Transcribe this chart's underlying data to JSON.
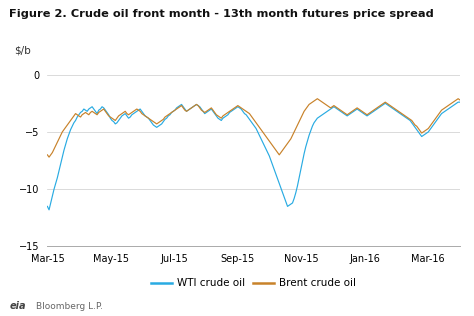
{
  "title": "Figure 2. Crude oil front month - 13th month futures price spread",
  "ylabel": "$/b",
  "ylim": [
    -15,
    1
  ],
  "yticks": [
    0,
    -5,
    -10,
    -15
  ],
  "xtick_labels": [
    "Mar-15",
    "May-15",
    "Jul-15",
    "Sep-15",
    "Nov-15",
    "Jan-16",
    "Mar-16"
  ],
  "wti_color": "#29abe2",
  "brent_color": "#c8822a",
  "background_color": "#ffffff",
  "legend_wti": "WTI crude oil",
  "legend_brent": "Brent crude oil",
  "wti_data": [
    -11.5,
    -11.8,
    -11.2,
    -10.6,
    -10.0,
    -9.5,
    -9.0,
    -8.4,
    -7.8,
    -7.2,
    -6.6,
    -6.1,
    -5.6,
    -5.2,
    -4.8,
    -4.5,
    -4.2,
    -4.0,
    -3.7,
    -3.5,
    -3.3,
    -3.2,
    -3.0,
    -3.1,
    -3.2,
    -3.0,
    -2.9,
    -2.8,
    -3.0,
    -3.2,
    -3.4,
    -3.1,
    -3.0,
    -2.8,
    -2.9,
    -3.1,
    -3.3,
    -3.5,
    -3.8,
    -4.0,
    -4.1,
    -4.3,
    -4.2,
    -4.0,
    -3.8,
    -3.6,
    -3.5,
    -3.4,
    -3.6,
    -3.8,
    -3.7,
    -3.5,
    -3.4,
    -3.3,
    -3.2,
    -3.1,
    -3.0,
    -3.2,
    -3.4,
    -3.6,
    -3.7,
    -3.8,
    -4.0,
    -4.2,
    -4.4,
    -4.5,
    -4.6,
    -4.5,
    -4.4,
    -4.3,
    -4.1,
    -3.9,
    -3.8,
    -3.6,
    -3.5,
    -3.3,
    -3.2,
    -3.1,
    -2.9,
    -2.8,
    -2.7,
    -2.6,
    -2.8,
    -3.0,
    -3.2,
    -3.1,
    -3.0,
    -2.9,
    -2.8,
    -2.7,
    -2.6,
    -2.7,
    -2.8,
    -3.0,
    -3.2,
    -3.4,
    -3.3,
    -3.2,
    -3.1,
    -3.0,
    -3.2,
    -3.4,
    -3.6,
    -3.8,
    -3.9,
    -4.0,
    -3.8,
    -3.7,
    -3.6,
    -3.5,
    -3.3,
    -3.2,
    -3.1,
    -3.0,
    -2.9,
    -2.8,
    -2.9,
    -3.0,
    -3.2,
    -3.4,
    -3.5,
    -3.7,
    -3.9,
    -4.1,
    -4.3,
    -4.5,
    -4.7,
    -5.0,
    -5.3,
    -5.6,
    -5.9,
    -6.2,
    -6.5,
    -6.8,
    -7.1,
    -7.5,
    -7.9,
    -8.3,
    -8.7,
    -9.1,
    -9.5,
    -9.9,
    -10.3,
    -10.7,
    -11.1,
    -11.5,
    -11.4,
    -11.3,
    -11.2,
    -10.8,
    -10.3,
    -9.7,
    -9.0,
    -8.3,
    -7.6,
    -6.9,
    -6.3,
    -5.8,
    -5.3,
    -4.9,
    -4.5,
    -4.2,
    -4.0,
    -3.8,
    -3.7,
    -3.6,
    -3.5,
    -3.4,
    -3.3,
    -3.2,
    -3.1,
    -3.0,
    -2.9,
    -2.8,
    -2.9,
    -3.0,
    -3.1,
    -3.2,
    -3.3,
    -3.4,
    -3.5,
    -3.6,
    -3.5,
    -3.4,
    -3.3,
    -3.2,
    -3.1,
    -3.0,
    -3.1,
    -3.2,
    -3.3,
    -3.4,
    -3.5,
    -3.6,
    -3.5,
    -3.4,
    -3.3,
    -3.2,
    -3.1,
    -3.0,
    -2.9,
    -2.8,
    -2.7,
    -2.6,
    -2.5,
    -2.6,
    -2.7,
    -2.8,
    -2.9,
    -3.0,
    -3.1,
    -3.2,
    -3.3,
    -3.4,
    -3.5,
    -3.6,
    -3.7,
    -3.8,
    -3.9,
    -4.0,
    -4.2,
    -4.4,
    -4.6,
    -4.8,
    -5.0,
    -5.2,
    -5.4,
    -5.3,
    -5.2,
    -5.1,
    -5.0,
    -4.8,
    -4.6,
    -4.4,
    -4.2,
    -4.0,
    -3.8,
    -3.6,
    -3.4,
    -3.3,
    -3.2,
    -3.1,
    -3.0,
    -2.9,
    -2.8,
    -2.7,
    -2.6,
    -2.5,
    -2.4,
    -2.4
  ],
  "brent_data": [
    -7.0,
    -7.2,
    -7.0,
    -6.8,
    -6.5,
    -6.2,
    -5.9,
    -5.6,
    -5.3,
    -5.0,
    -4.8,
    -4.6,
    -4.4,
    -4.2,
    -4.0,
    -3.8,
    -3.6,
    -3.4,
    -3.5,
    -3.6,
    -3.7,
    -3.5,
    -3.4,
    -3.3,
    -3.4,
    -3.5,
    -3.3,
    -3.2,
    -3.3,
    -3.4,
    -3.5,
    -3.3,
    -3.2,
    -3.1,
    -3.0,
    -3.2,
    -3.4,
    -3.6,
    -3.7,
    -3.8,
    -3.9,
    -4.0,
    -3.8,
    -3.6,
    -3.5,
    -3.4,
    -3.3,
    -3.2,
    -3.4,
    -3.5,
    -3.4,
    -3.3,
    -3.2,
    -3.1,
    -3.0,
    -3.1,
    -3.2,
    -3.4,
    -3.5,
    -3.6,
    -3.7,
    -3.8,
    -3.9,
    -4.0,
    -4.1,
    -4.2,
    -4.3,
    -4.2,
    -4.1,
    -4.0,
    -3.9,
    -3.7,
    -3.6,
    -3.5,
    -3.4,
    -3.3,
    -3.2,
    -3.1,
    -3.0,
    -2.9,
    -2.8,
    -2.7,
    -2.9,
    -3.1,
    -3.2,
    -3.1,
    -3.0,
    -2.9,
    -2.8,
    -2.7,
    -2.6,
    -2.7,
    -2.9,
    -3.1,
    -3.2,
    -3.3,
    -3.2,
    -3.1,
    -3.0,
    -2.9,
    -3.1,
    -3.3,
    -3.5,
    -3.6,
    -3.7,
    -3.8,
    -3.6,
    -3.5,
    -3.4,
    -3.3,
    -3.2,
    -3.1,
    -3.0,
    -2.9,
    -2.8,
    -2.7,
    -2.8,
    -2.9,
    -3.0,
    -3.1,
    -3.2,
    -3.3,
    -3.4,
    -3.6,
    -3.8,
    -4.0,
    -4.2,
    -4.4,
    -4.6,
    -4.8,
    -5.0,
    -5.2,
    -5.4,
    -5.6,
    -5.8,
    -6.0,
    -6.2,
    -6.4,
    -6.6,
    -6.8,
    -7.0,
    -6.8,
    -6.6,
    -6.4,
    -6.2,
    -6.0,
    -5.8,
    -5.6,
    -5.3,
    -5.0,
    -4.7,
    -4.4,
    -4.1,
    -3.8,
    -3.5,
    -3.2,
    -3.0,
    -2.8,
    -2.6,
    -2.5,
    -2.4,
    -2.3,
    -2.2,
    -2.1,
    -2.2,
    -2.3,
    -2.4,
    -2.5,
    -2.6,
    -2.7,
    -2.8,
    -2.9,
    -2.8,
    -2.7,
    -2.8,
    -2.9,
    -3.0,
    -3.1,
    -3.2,
    -3.3,
    -3.4,
    -3.5,
    -3.4,
    -3.3,
    -3.2,
    -3.1,
    -3.0,
    -2.9,
    -3.0,
    -3.1,
    -3.2,
    -3.3,
    -3.4,
    -3.5,
    -3.4,
    -3.3,
    -3.2,
    -3.1,
    -3.0,
    -2.9,
    -2.8,
    -2.7,
    -2.6,
    -2.5,
    -2.4,
    -2.5,
    -2.6,
    -2.7,
    -2.8,
    -2.9,
    -3.0,
    -3.1,
    -3.2,
    -3.3,
    -3.4,
    -3.5,
    -3.6,
    -3.7,
    -3.8,
    -3.9,
    -4.0,
    -4.2,
    -4.4,
    -4.5,
    -4.7,
    -4.9,
    -5.1,
    -5.0,
    -4.9,
    -4.8,
    -4.7,
    -4.5,
    -4.3,
    -4.1,
    -3.9,
    -3.7,
    -3.5,
    -3.3,
    -3.1,
    -3.0,
    -2.9,
    -2.8,
    -2.7,
    -2.6,
    -2.5,
    -2.4,
    -2.3,
    -2.2,
    -2.1,
    -2.2
  ]
}
